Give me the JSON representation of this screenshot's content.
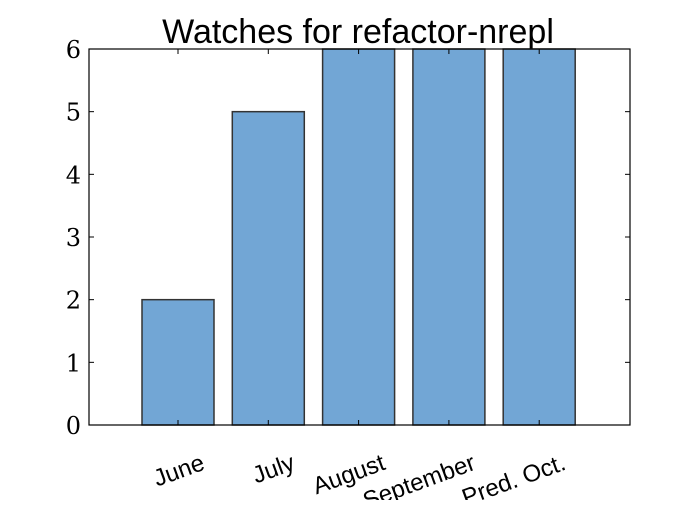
{
  "chart_data": {
    "type": "bar",
    "title": "Watches for refactor-nrepl",
    "categories": [
      "June",
      "July",
      "August",
      "September",
      "Pred. Oct."
    ],
    "values": [
      2,
      5,
      6,
      6,
      6
    ],
    "xlabel": "",
    "ylabel": "",
    "ylim": [
      0,
      6
    ],
    "yticks": [
      "0",
      "1",
      "2",
      "3",
      "4",
      "5",
      "6"
    ],
    "grid": false,
    "bar_color": "#72a6d5",
    "bar_edge_color": "#333333",
    "x_tick_rotation_deg": -20
  }
}
